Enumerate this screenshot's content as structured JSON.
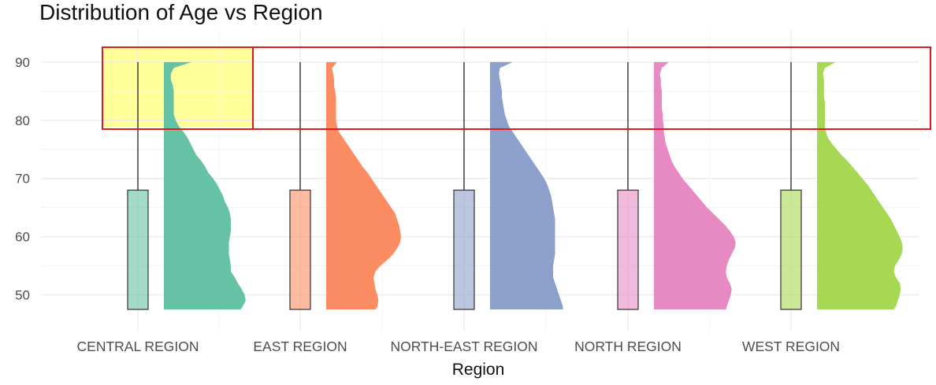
{
  "chart_data": {
    "type": "violin-box",
    "title": "Distribution of Age vs Region",
    "xlabel": "Region",
    "ylabel": "",
    "ylim": [
      47,
      93
    ],
    "yticks": [
      50,
      60,
      70,
      80,
      90
    ],
    "grid": true,
    "categories": [
      "CENTRAL REGION",
      "EAST REGION",
      "NORTH-EAST REGION",
      "NORTH REGION",
      "WEST REGION"
    ],
    "series": [
      {
        "category": "CENTRAL REGION",
        "color": "#66c2a5",
        "highlight": true,
        "box": {
          "q3": 68,
          "whisker_max": 90
        },
        "density": [
          [
            47,
            0.78
          ],
          [
            48,
            0.8
          ],
          [
            49,
            0.83
          ],
          [
            50,
            0.82
          ],
          [
            51,
            0.79
          ],
          [
            52,
            0.75
          ],
          [
            53,
            0.72
          ],
          [
            54,
            0.68
          ],
          [
            55,
            0.68
          ],
          [
            56,
            0.67
          ],
          [
            57,
            0.66
          ],
          [
            58,
            0.66
          ],
          [
            59,
            0.66
          ],
          [
            60,
            0.67
          ],
          [
            61,
            0.68
          ],
          [
            62,
            0.68
          ],
          [
            63,
            0.68
          ],
          [
            64,
            0.67
          ],
          [
            65,
            0.65
          ],
          [
            66,
            0.62
          ],
          [
            67,
            0.6
          ],
          [
            68,
            0.57
          ],
          [
            69,
            0.54
          ],
          [
            70,
            0.5
          ],
          [
            71,
            0.45
          ],
          [
            72,
            0.42
          ],
          [
            73,
            0.38
          ],
          [
            74,
            0.33
          ],
          [
            75,
            0.3
          ],
          [
            76,
            0.27
          ],
          [
            77,
            0.24
          ],
          [
            78,
            0.2
          ],
          [
            79,
            0.15
          ],
          [
            80,
            0.12
          ],
          [
            81,
            0.1
          ],
          [
            82,
            0.1
          ],
          [
            83,
            0.1
          ],
          [
            84,
            0.1
          ],
          [
            85,
            0.1
          ],
          [
            86,
            0.09
          ],
          [
            87,
            0.07
          ],
          [
            88,
            0.07
          ],
          [
            89,
            0.1
          ],
          [
            90,
            0.28
          ]
        ]
      },
      {
        "category": "EAST REGION",
        "color": "#fc8d62",
        "box": {
          "q3": 68,
          "whisker_max": 90
        },
        "density": [
          [
            47,
            0.5
          ],
          [
            48,
            0.52
          ],
          [
            49,
            0.53
          ],
          [
            50,
            0.52
          ],
          [
            51,
            0.5
          ],
          [
            52,
            0.49
          ],
          [
            53,
            0.48
          ],
          [
            54,
            0.5
          ],
          [
            55,
            0.55
          ],
          [
            56,
            0.62
          ],
          [
            57,
            0.68
          ],
          [
            58,
            0.72
          ],
          [
            59,
            0.75
          ],
          [
            60,
            0.76
          ],
          [
            61,
            0.75
          ],
          [
            62,
            0.74
          ],
          [
            63,
            0.72
          ],
          [
            64,
            0.7
          ],
          [
            65,
            0.66
          ],
          [
            66,
            0.62
          ],
          [
            67,
            0.58
          ],
          [
            68,
            0.54
          ],
          [
            69,
            0.5
          ],
          [
            70,
            0.46
          ],
          [
            71,
            0.42
          ],
          [
            72,
            0.37
          ],
          [
            73,
            0.33
          ],
          [
            74,
            0.29
          ],
          [
            75,
            0.25
          ],
          [
            76,
            0.21
          ],
          [
            77,
            0.17
          ],
          [
            78,
            0.13
          ],
          [
            79,
            0.11
          ],
          [
            80,
            0.1
          ],
          [
            81,
            0.1
          ],
          [
            82,
            0.1
          ],
          [
            83,
            0.1
          ],
          [
            84,
            0.1
          ],
          [
            85,
            0.09
          ],
          [
            86,
            0.08
          ],
          [
            87,
            0.08
          ],
          [
            88,
            0.07
          ],
          [
            89,
            0.06
          ],
          [
            90,
            0.11
          ]
        ]
      },
      {
        "category": "NORTH-EAST REGION",
        "color": "#8da0cb",
        "box": {
          "q3": 68,
          "whisker_max": 90
        },
        "density": [
          [
            47,
            0.74
          ],
          [
            48,
            0.74
          ],
          [
            49,
            0.72
          ],
          [
            50,
            0.7
          ],
          [
            51,
            0.68
          ],
          [
            52,
            0.66
          ],
          [
            53,
            0.64
          ],
          [
            54,
            0.64
          ],
          [
            55,
            0.64
          ],
          [
            56,
            0.65
          ],
          [
            57,
            0.66
          ],
          [
            58,
            0.66
          ],
          [
            59,
            0.66
          ],
          [
            60,
            0.66
          ],
          [
            61,
            0.66
          ],
          [
            62,
            0.66
          ],
          [
            63,
            0.66
          ],
          [
            64,
            0.65
          ],
          [
            65,
            0.64
          ],
          [
            66,
            0.63
          ],
          [
            67,
            0.62
          ],
          [
            68,
            0.6
          ],
          [
            69,
            0.58
          ],
          [
            70,
            0.55
          ],
          [
            71,
            0.51
          ],
          [
            72,
            0.47
          ],
          [
            73,
            0.43
          ],
          [
            74,
            0.39
          ],
          [
            75,
            0.35
          ],
          [
            76,
            0.31
          ],
          [
            77,
            0.27
          ],
          [
            78,
            0.23
          ],
          [
            79,
            0.19
          ],
          [
            80,
            0.17
          ],
          [
            81,
            0.15
          ],
          [
            82,
            0.14
          ],
          [
            83,
            0.13
          ],
          [
            84,
            0.12
          ],
          [
            85,
            0.12
          ],
          [
            86,
            0.11
          ],
          [
            87,
            0.1
          ],
          [
            88,
            0.09
          ],
          [
            89,
            0.1
          ],
          [
            90,
            0.23
          ]
        ]
      },
      {
        "category": "NORTH REGION",
        "color": "#e78ac3",
        "box": {
          "q3": 68,
          "whisker_max": 90
        },
        "density": [
          [
            47,
            0.73
          ],
          [
            48,
            0.74
          ],
          [
            49,
            0.76
          ],
          [
            50,
            0.78
          ],
          [
            51,
            0.79
          ],
          [
            52,
            0.77
          ],
          [
            53,
            0.74
          ],
          [
            54,
            0.73
          ],
          [
            55,
            0.74
          ],
          [
            56,
            0.76
          ],
          [
            57,
            0.79
          ],
          [
            58,
            0.82
          ],
          [
            59,
            0.83
          ],
          [
            60,
            0.81
          ],
          [
            61,
            0.77
          ],
          [
            62,
            0.72
          ],
          [
            63,
            0.66
          ],
          [
            64,
            0.6
          ],
          [
            65,
            0.54
          ],
          [
            66,
            0.49
          ],
          [
            67,
            0.44
          ],
          [
            68,
            0.39
          ],
          [
            69,
            0.34
          ],
          [
            70,
            0.29
          ],
          [
            71,
            0.25
          ],
          [
            72,
            0.21
          ],
          [
            73,
            0.18
          ],
          [
            74,
            0.16
          ],
          [
            75,
            0.14
          ],
          [
            76,
            0.12
          ],
          [
            77,
            0.11
          ],
          [
            78,
            0.1
          ],
          [
            79,
            0.1
          ],
          [
            80,
            0.09
          ],
          [
            81,
            0.09
          ],
          [
            82,
            0.08
          ],
          [
            83,
            0.08
          ],
          [
            84,
            0.08
          ],
          [
            85,
            0.08
          ],
          [
            86,
            0.07
          ],
          [
            87,
            0.07
          ],
          [
            88,
            0.06
          ],
          [
            89,
            0.08
          ],
          [
            90,
            0.15
          ]
        ]
      },
      {
        "category": "WEST REGION",
        "color": "#a6d854",
        "box": {
          "q3": 68,
          "whisker_max": 90
        },
        "density": [
          [
            47,
            0.78
          ],
          [
            48,
            0.8
          ],
          [
            49,
            0.82
          ],
          [
            50,
            0.84
          ],
          [
            51,
            0.85
          ],
          [
            52,
            0.84
          ],
          [
            53,
            0.8
          ],
          [
            54,
            0.78
          ],
          [
            55,
            0.79
          ],
          [
            56,
            0.83
          ],
          [
            57,
            0.86
          ],
          [
            58,
            0.87
          ],
          [
            59,
            0.86
          ],
          [
            60,
            0.84
          ],
          [
            61,
            0.81
          ],
          [
            62,
            0.78
          ],
          [
            63,
            0.75
          ],
          [
            64,
            0.71
          ],
          [
            65,
            0.67
          ],
          [
            66,
            0.63
          ],
          [
            67,
            0.59
          ],
          [
            68,
            0.55
          ],
          [
            69,
            0.51
          ],
          [
            70,
            0.46
          ],
          [
            71,
            0.41
          ],
          [
            72,
            0.36
          ],
          [
            73,
            0.31
          ],
          [
            74,
            0.25
          ],
          [
            75,
            0.2
          ],
          [
            76,
            0.15
          ],
          [
            77,
            0.11
          ],
          [
            78,
            0.09
          ],
          [
            79,
            0.08
          ],
          [
            80,
            0.08
          ],
          [
            81,
            0.08
          ],
          [
            82,
            0.08
          ],
          [
            83,
            0.08
          ],
          [
            84,
            0.07
          ],
          [
            85,
            0.07
          ],
          [
            86,
            0.07
          ],
          [
            87,
            0.07
          ],
          [
            88,
            0.06
          ],
          [
            89,
            0.08
          ],
          [
            90,
            0.19
          ]
        ]
      }
    ]
  },
  "colors": {
    "highlight_fill": "#ffff99",
    "annotation_border": "#e31a1c",
    "grid": "#ebebeb",
    "whisker": "#333333"
  }
}
